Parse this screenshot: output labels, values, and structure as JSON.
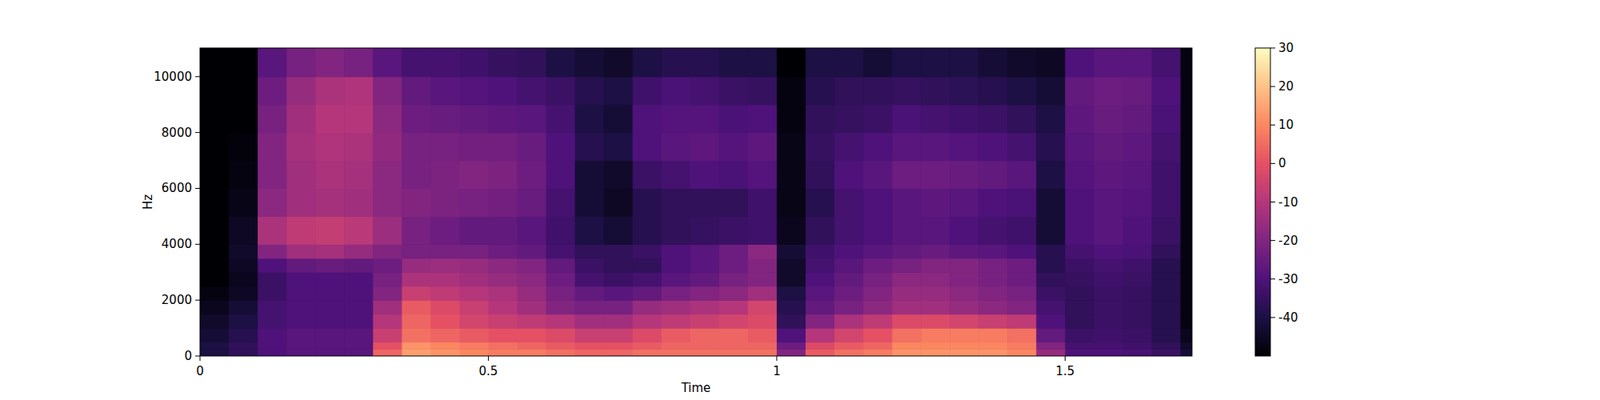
{
  "chart_data": {
    "type": "heatmap",
    "xlabel": "Time",
    "ylabel": "Hz",
    "xlim": [
      0,
      1.72
    ],
    "ylim": [
      0,
      11025
    ],
    "xticks": [
      0,
      0.5,
      1,
      1.5
    ],
    "yticks": [
      0,
      2000,
      4000,
      6000,
      8000,
      10000
    ],
    "x_edges": [
      0,
      0.05,
      0.1,
      0.15,
      0.2,
      0.25,
      0.3,
      0.35,
      0.4,
      0.45,
      0.5,
      0.55,
      0.6,
      0.65,
      0.7,
      0.75,
      0.8,
      0.85,
      0.9,
      0.95,
      1.0,
      1.05,
      1.1,
      1.15,
      1.2,
      1.25,
      1.3,
      1.35,
      1.4,
      1.45,
      1.5,
      1.55,
      1.6,
      1.65,
      1.7,
      1.72
    ],
    "y_edges": [
      0,
      250,
      500,
      1000,
      1500,
      2000,
      2500,
      3000,
      3500,
      4000,
      5000,
      6000,
      7000,
      8000,
      9000,
      10000,
      11025
    ],
    "cells": [
      [
        -40,
        -36,
        -30,
        -28,
        -28,
        -28,
        4,
        14,
        12,
        10,
        8,
        8,
        6,
        4,
        4,
        6,
        6,
        6,
        6,
        6,
        -20,
        2,
        6,
        8,
        12,
        12,
        12,
        12,
        10,
        -16,
        -30,
        -30,
        -31,
        -34,
        -42
      ],
      [
        -40,
        -36,
        -30,
        -28,
        -28,
        -28,
        0,
        12,
        10,
        8,
        6,
        4,
        2,
        0,
        0,
        2,
        4,
        4,
        4,
        4,
        -24,
        -2,
        2,
        4,
        10,
        10,
        10,
        10,
        8,
        -20,
        -32,
        -32,
        -33,
        -36,
        -44
      ],
      [
        -42,
        -38,
        -30,
        -28,
        -28,
        -28,
        -6,
        6,
        4,
        2,
        0,
        0,
        -2,
        -6,
        -6,
        -2,
        2,
        4,
        4,
        2,
        -30,
        -10,
        -4,
        0,
        6,
        8,
        8,
        8,
        6,
        -26,
        -34,
        -33,
        -34,
        -38,
        -46
      ],
      [
        -44,
        -40,
        -32,
        -30,
        -30,
        -30,
        -10,
        4,
        0,
        -4,
        -6,
        -8,
        -10,
        -14,
        -14,
        -10,
        -8,
        -6,
        -4,
        -2,
        -36,
        -20,
        -12,
        -8,
        -2,
        -2,
        -4,
        -6,
        -8,
        -30,
        -36,
        -34,
        -35,
        -38,
        -48
      ],
      [
        -46,
        -42,
        -32,
        -30,
        -30,
        -30,
        -14,
        2,
        -2,
        -6,
        -10,
        -14,
        -20,
        -22,
        -22,
        -16,
        -14,
        -12,
        -10,
        -4,
        -38,
        -26,
        -22,
        -18,
        -14,
        -14,
        -16,
        -18,
        -20,
        -32,
        -36,
        -34,
        -35,
        -38,
        -48
      ],
      [
        -48,
        -45,
        -34,
        -30,
        -30,
        -30,
        -20,
        -6,
        -8,
        -10,
        -12,
        -16,
        -22,
        -26,
        -28,
        -26,
        -22,
        -20,
        -18,
        -14,
        -40,
        -28,
        -24,
        -20,
        -16,
        -16,
        -18,
        -20,
        -22,
        -34,
        -36,
        -34,
        -35,
        -38,
        -48
      ],
      [
        -50,
        -46,
        -34,
        -30,
        -30,
        -30,
        -22,
        -12,
        -12,
        -14,
        -16,
        -18,
        -24,
        -32,
        -34,
        -32,
        -28,
        -26,
        -22,
        -20,
        -44,
        -30,
        -26,
        -22,
        -18,
        -18,
        -20,
        -22,
        -24,
        -36,
        -35,
        -33,
        -34,
        -38,
        -48
      ],
      [
        -50,
        -45,
        -30,
        -26,
        -25,
        -26,
        -24,
        -16,
        -15,
        -16,
        -18,
        -20,
        -26,
        -34,
        -36,
        -36,
        -30,
        -28,
        -24,
        -20,
        -44,
        -32,
        -28,
        -24,
        -22,
        -20,
        -20,
        -22,
        -24,
        -38,
        -34,
        -32,
        -33,
        -38,
        -48
      ],
      [
        -50,
        -44,
        -20,
        -14,
        -13,
        -16,
        -20,
        -22,
        -22,
        -22,
        -24,
        -26,
        -32,
        -36,
        -36,
        -34,
        -30,
        -28,
        -24,
        -18,
        -42,
        -33,
        -30,
        -28,
        -26,
        -25,
        -27,
        -28,
        -30,
        -38,
        -32,
        -30,
        -31,
        -36,
        -48
      ],
      [
        -50,
        -45,
        -12,
        -8,
        -7,
        -9,
        -15,
        -22,
        -24,
        -26,
        -26,
        -28,
        -33,
        -40,
        -42,
        -38,
        -36,
        -35,
        -34,
        -33,
        -46,
        -36,
        -32,
        -30,
        -28,
        -28,
        -30,
        -32,
        -33,
        -42,
        -30,
        -28,
        -30,
        -34,
        -48
      ],
      [
        -50,
        -47,
        -18,
        -14,
        -13,
        -14,
        -18,
        -20,
        -21,
        -22,
        -23,
        -25,
        -32,
        -42,
        -45,
        -38,
        -36,
        -36,
        -36,
        -33,
        -47,
        -38,
        -32,
        -30,
        -28,
        -27,
        -28,
        -30,
        -31,
        -42,
        -30,
        -28,
        -29,
        -33,
        -48
      ],
      [
        -50,
        -48,
        -20,
        -14,
        -12,
        -13,
        -18,
        -22,
        -21,
        -20,
        -21,
        -24,
        -30,
        -42,
        -44,
        -34,
        -32,
        -30,
        -31,
        -29,
        -47,
        -36,
        -30,
        -28,
        -24,
        -24,
        -25,
        -26,
        -28,
        -40,
        -29,
        -27,
        -28,
        -33,
        -48
      ],
      [
        -50,
        -49,
        -20,
        -13,
        -11,
        -12,
        -17,
        -22,
        -22,
        -23,
        -23,
        -25,
        -30,
        -38,
        -40,
        -30,
        -28,
        -27,
        -29,
        -27,
        -47,
        -35,
        -32,
        -30,
        -28,
        -28,
        -29,
        -30,
        -32,
        -38,
        -28,
        -26,
        -27,
        -32,
        -48
      ],
      [
        -50,
        -50,
        -22,
        -14,
        -10,
        -10,
        -18,
        -24,
        -25,
        -26,
        -27,
        -28,
        -32,
        -40,
        -42,
        -30,
        -29,
        -29,
        -31,
        -30,
        -48,
        -36,
        -35,
        -34,
        -31,
        -32,
        -33,
        -34,
        -36,
        -40,
        -27,
        -25,
        -26,
        -31,
        -48
      ],
      [
        -50,
        -50,
        -24,
        -16,
        -12,
        -11,
        -20,
        -26,
        -28,
        -29,
        -30,
        -32,
        -34,
        -38,
        -40,
        -33,
        -31,
        -32,
        -34,
        -35,
        -48,
        -38,
        -36,
        -36,
        -35,
        -36,
        -37,
        -38,
        -40,
        -42,
        -26,
        -24,
        -25,
        -30,
        -48
      ],
      [
        -50,
        -50,
        -28,
        -22,
        -20,
        -22,
        -28,
        -32,
        -32,
        -33,
        -35,
        -36,
        -40,
        -42,
        -44,
        -40,
        -38,
        -38,
        -40,
        -40,
        -50,
        -40,
        -40,
        -42,
        -40,
        -40,
        -40,
        -42,
        -44,
        -45,
        -30,
        -28,
        -28,
        -32,
        -48
      ]
    ],
    "colorbar_range": [
      -50,
      30
    ],
    "colorbar_ticks": [
      -40,
      -30,
      -20,
      -10,
      0,
      10,
      20,
      30
    ]
  }
}
